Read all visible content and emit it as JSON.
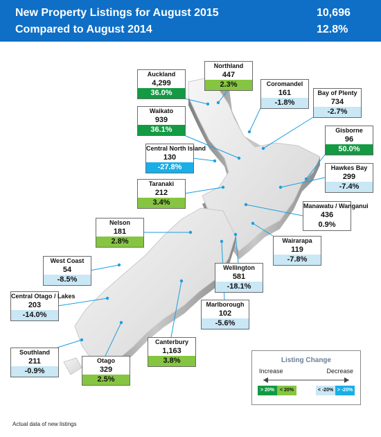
{
  "header": {
    "title": "New Property Listings for August 2015",
    "subtitle": "Compared to August 2014",
    "total_listings": "10,696",
    "total_change": "12.8%"
  },
  "colors": {
    "header_bg": "#0f6fc6",
    "increase_over_20": "#139a43",
    "increase_under_20": "#86c541",
    "decrease_under_20": "#c9e7f5",
    "decrease_over_20": "#1aaee6"
  },
  "regions": [
    {
      "name": "Auckland",
      "count": "4,299",
      "change": "36.0%",
      "category": "up20"
    },
    {
      "name": "Northland",
      "count": "447",
      "change": "2.3%",
      "category": "up"
    },
    {
      "name": "Coromandel",
      "count": "161",
      "change": "-1.8%",
      "category": "dn"
    },
    {
      "name": "Bay of Plenty",
      "count": "734",
      "change": "-2.7%",
      "category": "dn"
    },
    {
      "name": "Waikato",
      "count": "939",
      "change": "36.1%",
      "category": "up20"
    },
    {
      "name": "Gisborne",
      "count": "96",
      "change": "50.0%",
      "category": "up20"
    },
    {
      "name": "Central North Island",
      "count": "130",
      "change": "-27.8%",
      "category": "dn20"
    },
    {
      "name": "Hawkes Bay",
      "count": "299",
      "change": "-7.4%",
      "category": "dn"
    },
    {
      "name": "Taranaki",
      "count": "212",
      "change": "3.4%",
      "category": "up"
    },
    {
      "name": "Manawatu / Wanganui",
      "count": "436",
      "change": "0.9%",
      "category": "flat"
    },
    {
      "name": "Nelson",
      "count": "181",
      "change": "2.8%",
      "category": "up"
    },
    {
      "name": "Wairarapa",
      "count": "119",
      "change": "-7.8%",
      "category": "dn"
    },
    {
      "name": "West Coast",
      "count": "54",
      "change": "-8.5%",
      "category": "dn"
    },
    {
      "name": "Wellington",
      "count": "581",
      "change": "-18.1%",
      "category": "dn"
    },
    {
      "name": "Central Otago / Lakes",
      "count": "203",
      "change": "-14.0%",
      "category": "dn"
    },
    {
      "name": "Marlborough",
      "count": "102",
      "change": "-5.6%",
      "category": "dn"
    },
    {
      "name": "Canterbury",
      "count": "1,163",
      "change": "3.8%",
      "category": "up"
    },
    {
      "name": "Southland",
      "count": "211",
      "change": "-0.9%",
      "category": "dn"
    },
    {
      "name": "Otago",
      "count": "329",
      "change": "2.5%",
      "category": "up"
    }
  ],
  "legend": {
    "title": "Listing Change",
    "increase_label": "Increase",
    "decrease_label": "Decrease",
    "swatches": [
      "> 20%",
      "< 20%",
      "",
      "< -20%",
      "> -20%"
    ]
  },
  "footnote": "Actual data of new listings"
}
